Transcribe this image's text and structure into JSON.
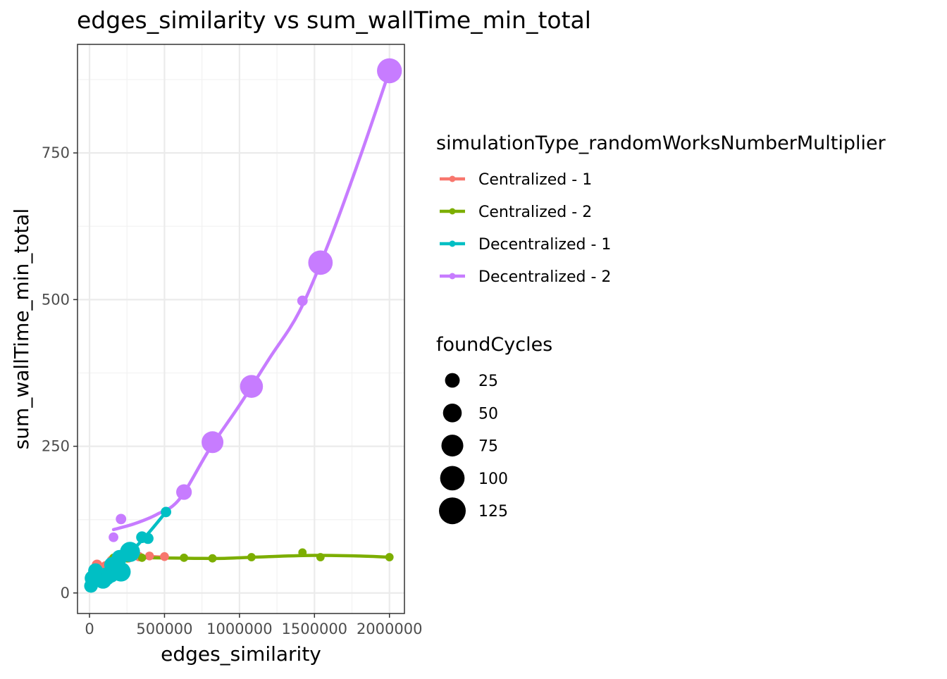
{
  "chart_data": {
    "type": "scatter",
    "title": "edges_similarity  vs  sum_wallTime_min_total",
    "xlabel": "edges_similarity",
    "ylabel": "sum_wallTime_min_total",
    "xlim": [
      -80000,
      2100000
    ],
    "ylim": [
      -35,
      935
    ],
    "x_ticks": [
      0,
      500000,
      1000000,
      1500000,
      2000000
    ],
    "x_tick_labels": [
      "0",
      "500000",
      "1000000",
      "1500000",
      "2000000"
    ],
    "y_ticks": [
      0,
      250,
      500,
      750
    ],
    "y_tick_labels": [
      "0",
      "250",
      "500",
      "750"
    ],
    "grid": true,
    "legend_placement": "right",
    "color_legend": {
      "title": "simulationType_randomWorksNumberMultiplier",
      "entries": [
        "Centralized - 1",
        "Centralized - 2",
        "Decentralized - 1",
        "Decentralized - 2"
      ]
    },
    "size_legend": {
      "title": "foundCycles",
      "entries": [
        {
          "label": "25",
          "value": 25
        },
        {
          "label": "50",
          "value": 50
        },
        {
          "label": "75",
          "value": 75
        },
        {
          "label": "100",
          "value": 100
        },
        {
          "label": "125",
          "value": 125
        }
      ]
    },
    "series": [
      {
        "name": "Centralized - 1",
        "color": "#F8766D",
        "points": [
          {
            "x": 20000,
            "y": 22,
            "size": 10
          },
          {
            "x": 50000,
            "y": 48,
            "size": 8
          },
          {
            "x": 80000,
            "y": 35,
            "size": 12
          },
          {
            "x": 110000,
            "y": 45,
            "size": 10
          },
          {
            "x": 150000,
            "y": 55,
            "size": 8
          },
          {
            "x": 200000,
            "y": 62,
            "size": 8
          },
          {
            "x": 260000,
            "y": 60,
            "size": 6
          },
          {
            "x": 330000,
            "y": 62,
            "size": 5
          },
          {
            "x": 400000,
            "y": 63,
            "size": 4
          },
          {
            "x": 500000,
            "y": 62,
            "size": 4
          }
        ],
        "trend": [
          [
            20000,
            22
          ],
          [
            100000,
            38
          ],
          [
            200000,
            55
          ],
          [
            300000,
            61
          ],
          [
            400000,
            62
          ],
          [
            500000,
            61
          ]
        ]
      },
      {
        "name": "Centralized - 2",
        "color": "#7CAE00",
        "points": [
          {
            "x": 160000,
            "y": 60,
            "size": 3
          },
          {
            "x": 200000,
            "y": 60,
            "size": 3
          },
          {
            "x": 250000,
            "y": 59,
            "size": 3
          },
          {
            "x": 350000,
            "y": 60,
            "size": 3
          },
          {
            "x": 630000,
            "y": 60,
            "size": 3
          },
          {
            "x": 820000,
            "y": 59,
            "size": 3
          },
          {
            "x": 1080000,
            "y": 61,
            "size": 3
          },
          {
            "x": 1420000,
            "y": 69,
            "size": 3
          },
          {
            "x": 1540000,
            "y": 61,
            "size": 3
          },
          {
            "x": 2000000,
            "y": 61,
            "size": 3
          }
        ],
        "trend": [
          [
            160000,
            60
          ],
          [
            400000,
            60
          ],
          [
            700000,
            59
          ],
          [
            900000,
            59
          ],
          [
            1200000,
            62
          ],
          [
            1500000,
            64
          ],
          [
            1800000,
            63
          ],
          [
            2000000,
            61
          ]
        ]
      },
      {
        "name": "Decentralized - 1",
        "color": "#00BFC4",
        "points": [
          {
            "x": 10000,
            "y": 12,
            "size": 20
          },
          {
            "x": 20000,
            "y": 25,
            "size": 30
          },
          {
            "x": 40000,
            "y": 38,
            "size": 25
          },
          {
            "x": 60000,
            "y": 30,
            "size": 35
          },
          {
            "x": 90000,
            "y": 22,
            "size": 40
          },
          {
            "x": 110000,
            "y": 28,
            "size": 45
          },
          {
            "x": 140000,
            "y": 32,
            "size": 40
          },
          {
            "x": 150000,
            "y": 48,
            "size": 30
          },
          {
            "x": 180000,
            "y": 40,
            "size": 50
          },
          {
            "x": 200000,
            "y": 60,
            "size": 30
          },
          {
            "x": 210000,
            "y": 36,
            "size": 55
          },
          {
            "x": 270000,
            "y": 70,
            "size": 60
          },
          {
            "x": 350000,
            "y": 95,
            "size": 12
          },
          {
            "x": 390000,
            "y": 93,
            "size": 10
          },
          {
            "x": 510000,
            "y": 138,
            "size": 8
          }
        ],
        "trend": [
          [
            10000,
            14
          ],
          [
            80000,
            24
          ],
          [
            150000,
            38
          ],
          [
            230000,
            56
          ],
          [
            300000,
            76
          ],
          [
            400000,
            104
          ],
          [
            510000,
            138
          ]
        ]
      },
      {
        "name": "Decentralized - 2",
        "color": "#C77CFF",
        "points": [
          {
            "x": 160000,
            "y": 95,
            "size": 6
          },
          {
            "x": 210000,
            "y": 126,
            "size": 8
          },
          {
            "x": 630000,
            "y": 172,
            "size": 30
          },
          {
            "x": 820000,
            "y": 257,
            "size": 75
          },
          {
            "x": 1080000,
            "y": 352,
            "size": 85
          },
          {
            "x": 1420000,
            "y": 498,
            "size": 8
          },
          {
            "x": 1540000,
            "y": 563,
            "size": 100
          },
          {
            "x": 2000000,
            "y": 890,
            "size": 105
          }
        ],
        "trend": [
          [
            160000,
            108
          ],
          [
            300000,
            118
          ],
          [
            450000,
            134
          ],
          [
            600000,
            160
          ],
          [
            800000,
            245
          ],
          [
            1000000,
            320
          ],
          [
            1200000,
            400
          ],
          [
            1400000,
            480
          ],
          [
            1600000,
            600
          ],
          [
            1800000,
            740
          ],
          [
            2000000,
            890
          ]
        ]
      }
    ]
  }
}
